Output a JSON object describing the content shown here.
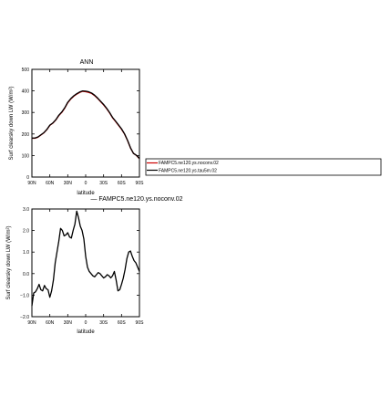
{
  "chart_data": [
    {
      "type": "line",
      "title": "ANN",
      "xlabel": "latitude",
      "ylabel": "Surf clearsky down LW (W/m²)",
      "ylim": [
        0,
        500
      ],
      "xlim": [
        -90,
        90
      ],
      "x_reversed": true,
      "yticks": [
        0,
        100,
        200,
        300,
        400,
        500
      ],
      "ytick_labels": [
        "0",
        "100",
        "200",
        "300",
        "400",
        "500"
      ],
      "xticks": [
        90,
        60,
        30,
        0,
        -30,
        -60,
        -90
      ],
      "xtick_labels": [
        "90N",
        "60N",
        "30N",
        "0",
        "30S",
        "60S",
        "90S"
      ],
      "legend_placement": "right",
      "legend": [
        "FAMPC5.ne120.ys.noconv.02",
        "FAMPC5.ne120.ys.tau5m.02"
      ],
      "series": [
        {
          "name": "FAMPC5.ne120.ys.noconv.02",
          "color": "#cc0000",
          "x": [
            90,
            85,
            80,
            75,
            70,
            65,
            60,
            55,
            50,
            45,
            40,
            35,
            30,
            25,
            20,
            15,
            10,
            5,
            0,
            -5,
            -10,
            -15,
            -20,
            -25,
            -30,
            -35,
            -40,
            -45,
            -50,
            -55,
            -60,
            -65,
            -70,
            -75,
            -80,
            -85,
            -90
          ],
          "y": [
            180,
            180,
            185,
            195,
            205,
            220,
            240,
            250,
            265,
            285,
            300,
            320,
            345,
            362,
            375,
            385,
            393,
            398,
            396,
            393,
            388,
            378,
            365,
            350,
            335,
            318,
            298,
            275,
            258,
            240,
            222,
            200,
            170,
            135,
            110,
            100,
            85
          ]
        },
        {
          "name": "FAMPC5.ne120.ys.tau5m.02",
          "color": "#000000",
          "x": [
            90,
            85,
            80,
            75,
            70,
            65,
            60,
            55,
            50,
            45,
            40,
            35,
            30,
            25,
            20,
            15,
            10,
            5,
            0,
            -5,
            -10,
            -15,
            -20,
            -25,
            -30,
            -35,
            -40,
            -45,
            -50,
            -55,
            -60,
            -65,
            -70,
            -75,
            -80,
            -85,
            -90
          ],
          "y": [
            181,
            181,
            186,
            196,
            206,
            221,
            241,
            251,
            266,
            287,
            302,
            322,
            347,
            364,
            377,
            387,
            395,
            400,
            399,
            396,
            390,
            380,
            367,
            352,
            337,
            320,
            300,
            277,
            260,
            242,
            224,
            201,
            171,
            136,
            110,
            101,
            86
          ]
        }
      ]
    },
    {
      "type": "line",
      "title": "— FAMPC5.ne120.ys.noconv.02",
      "xlabel": "latitude",
      "ylabel": "Surf clearsky down LW (W/m²)",
      "ylim": [
        -2.0,
        3.0
      ],
      "xlim": [
        -90,
        90
      ],
      "x_reversed": true,
      "yticks": [
        -2.0,
        -1.0,
        0.0,
        1.0,
        2.0,
        3.0
      ],
      "ytick_labels": [
        "−2.0",
        "−1.0",
        "0.0",
        "1.0",
        "2.0",
        "3.0"
      ],
      "xticks": [
        90,
        60,
        30,
        0,
        -30,
        -60,
        -90
      ],
      "xtick_labels": [
        "90N",
        "60N",
        "30N",
        "0",
        "30S",
        "60S",
        "90S"
      ],
      "series": [
        {
          "color": "#000000",
          "x": [
            90,
            87,
            84,
            81,
            78,
            75,
            72,
            69,
            66,
            63,
            60,
            57,
            54,
            51,
            48,
            45,
            42,
            39,
            36,
            33,
            30,
            27,
            24,
            21,
            18,
            15,
            12,
            9,
            6,
            3,
            0,
            -3,
            -6,
            -9,
            -12,
            -15,
            -18,
            -21,
            -24,
            -27,
            -30,
            -33,
            -36,
            -39,
            -42,
            -45,
            -48,
            -51,
            -54,
            -57,
            -60,
            -63,
            -66,
            -69,
            -72,
            -75,
            -78,
            -81,
            -84,
            -87,
            -90
          ],
          "y": [
            -1.5,
            -0.9,
            -0.85,
            -0.7,
            -0.5,
            -0.75,
            -0.8,
            -0.55,
            -0.7,
            -0.75,
            -1.1,
            -0.8,
            -0.3,
            0.5,
            1.0,
            1.5,
            2.1,
            2.0,
            1.75,
            1.8,
            1.9,
            1.7,
            1.65,
            2.0,
            2.3,
            2.9,
            2.6,
            2.2,
            2.0,
            1.6,
            0.8,
            0.3,
            0.1,
            0.0,
            -0.1,
            -0.15,
            -0.05,
            0.05,
            0.0,
            -0.1,
            -0.2,
            -0.15,
            -0.05,
            -0.1,
            -0.2,
            -0.1,
            0.1,
            -0.3,
            -0.8,
            -0.75,
            -0.5,
            -0.2,
            0.2,
            0.7,
            1.0,
            1.05,
            0.8,
            0.6,
            0.5,
            0.3,
            0.1
          ]
        }
      ]
    }
  ]
}
